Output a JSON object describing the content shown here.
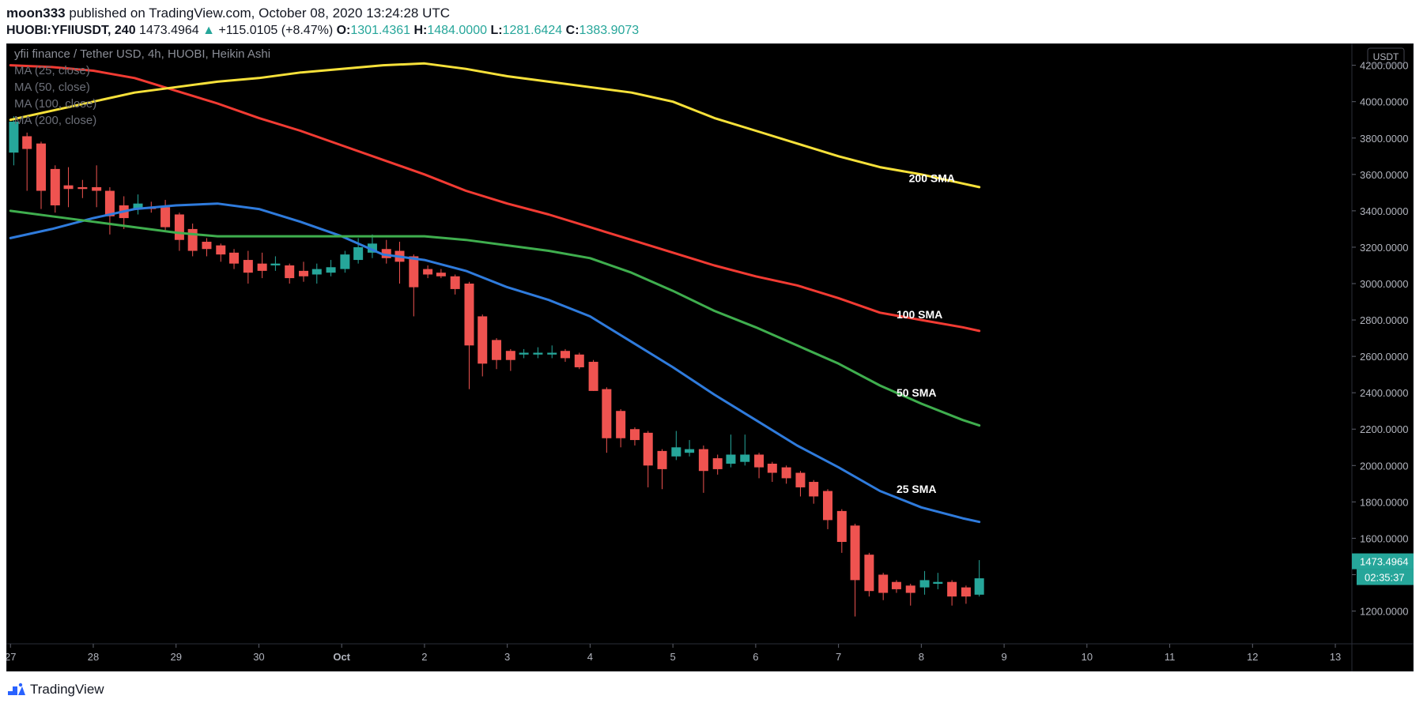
{
  "header": {
    "author": "moon333",
    "published_text": "published on TradingView.com, October 08, 2020 13:24:28 UTC",
    "symbol": "HUOBI:YFIIUSDT, 240",
    "last": "1473.4964",
    "change": "+115.0105 (+8.47%)",
    "o_label": "O:",
    "o": "1301.4361",
    "h_label": "H:",
    "h": "1484.0000",
    "l_label": "L:",
    "l": "1281.6424",
    "c_label": "C:",
    "c": "1383.9073"
  },
  "footer": {
    "brand": "TradingView"
  },
  "chart_data": {
    "type": "candlestick",
    "title": "yfii finance / Tether USD, 4h, HUOBI, Heikin Ashi",
    "currency_label": "USDT",
    "indicators_legend": [
      "MA (25, close)",
      "MA (50, close)",
      "MA (100, close)",
      "MA (200, close)"
    ],
    "y_ticks": [
      1200,
      1400,
      1600,
      1800,
      2000,
      2200,
      2400,
      2600,
      2800,
      3000,
      3200,
      3400,
      3600,
      3800,
      4000,
      4200
    ],
    "y_tick_labels": [
      "1200.0000",
      "1400.0000",
      "1600.0000",
      "1800.0000",
      "2000.0000",
      "2200.0000",
      "2400.0000",
      "2600.0000",
      "2800.0000",
      "3000.0000",
      "3200.0000",
      "3400.0000",
      "3600.0000",
      "3800.0000",
      "4000.0000",
      "4200.0000"
    ],
    "ylim": [
      1020,
      4320
    ],
    "x_range": [
      -0.05,
      16.2
    ],
    "x_ticks": [
      {
        "day": 0,
        "label": "27",
        "bold": false
      },
      {
        "day": 1,
        "label": "28",
        "bold": false
      },
      {
        "day": 2,
        "label": "29",
        "bold": false
      },
      {
        "day": 3,
        "label": "30",
        "bold": false
      },
      {
        "day": 4,
        "label": "Oct",
        "bold": true
      },
      {
        "day": 5,
        "label": "2",
        "bold": false
      },
      {
        "day": 6,
        "label": "3",
        "bold": false
      },
      {
        "day": 7,
        "label": "4",
        "bold": false
      },
      {
        "day": 8,
        "label": "5",
        "bold": false
      },
      {
        "day": 9,
        "label": "6",
        "bold": false
      },
      {
        "day": 10,
        "label": "7",
        "bold": false
      },
      {
        "day": 11,
        "label": "8",
        "bold": false
      },
      {
        "day": 12,
        "label": "9",
        "bold": false
      },
      {
        "day": 13,
        "label": "10",
        "bold": false
      },
      {
        "day": 14,
        "label": "11",
        "bold": false
      },
      {
        "day": 15,
        "label": "12",
        "bold": false
      },
      {
        "day": 16,
        "label": "13",
        "bold": false
      }
    ],
    "candles": [
      {
        "t": 0.04,
        "o": 3720,
        "h": 3920,
        "l": 3650,
        "c": 3890
      },
      {
        "t": 0.2,
        "o": 3810,
        "h": 3830,
        "l": 3510,
        "c": 3740
      },
      {
        "t": 0.37,
        "o": 3770,
        "h": 3780,
        "l": 3410,
        "c": 3510
      },
      {
        "t": 0.54,
        "o": 3630,
        "h": 3650,
        "l": 3390,
        "c": 3430
      },
      {
        "t": 0.7,
        "o": 3540,
        "h": 3640,
        "l": 3420,
        "c": 3520
      },
      {
        "t": 0.87,
        "o": 3530,
        "h": 3570,
        "l": 3470,
        "c": 3520
      },
      {
        "t": 1.04,
        "o": 3530,
        "h": 3650,
        "l": 3420,
        "c": 3510
      },
      {
        "t": 1.2,
        "o": 3510,
        "h": 3530,
        "l": 3270,
        "c": 3370
      },
      {
        "t": 1.37,
        "o": 3430,
        "h": 3480,
        "l": 3300,
        "c": 3360
      },
      {
        "t": 1.54,
        "o": 3410,
        "h": 3490,
        "l": 3380,
        "c": 3440
      },
      {
        "t": 1.7,
        "o": 3420,
        "h": 3450,
        "l": 3390,
        "c": 3410
      },
      {
        "t": 1.87,
        "o": 3420,
        "h": 3460,
        "l": 3290,
        "c": 3310
      },
      {
        "t": 2.04,
        "o": 3380,
        "h": 3390,
        "l": 3180,
        "c": 3240
      },
      {
        "t": 2.2,
        "o": 3300,
        "h": 3330,
        "l": 3150,
        "c": 3180
      },
      {
        "t": 2.37,
        "o": 3230,
        "h": 3250,
        "l": 3150,
        "c": 3190
      },
      {
        "t": 2.54,
        "o": 3210,
        "h": 3220,
        "l": 3120,
        "c": 3160
      },
      {
        "t": 2.7,
        "o": 3170,
        "h": 3190,
        "l": 3080,
        "c": 3110
      },
      {
        "t": 2.87,
        "o": 3130,
        "h": 3180,
        "l": 3000,
        "c": 3060
      },
      {
        "t": 3.04,
        "o": 3110,
        "h": 3170,
        "l": 3030,
        "c": 3070
      },
      {
        "t": 3.2,
        "o": 3100,
        "h": 3150,
        "l": 3070,
        "c": 3110
      },
      {
        "t": 3.37,
        "o": 3100,
        "h": 3110,
        "l": 3000,
        "c": 3030
      },
      {
        "t": 3.54,
        "o": 3070,
        "h": 3120,
        "l": 3010,
        "c": 3040
      },
      {
        "t": 3.7,
        "o": 3050,
        "h": 3110,
        "l": 3000,
        "c": 3080
      },
      {
        "t": 3.87,
        "o": 3060,
        "h": 3130,
        "l": 3040,
        "c": 3090
      },
      {
        "t": 4.04,
        "o": 3080,
        "h": 3180,
        "l": 3060,
        "c": 3160
      },
      {
        "t": 4.2,
        "o": 3130,
        "h": 3250,
        "l": 3110,
        "c": 3200
      },
      {
        "t": 4.37,
        "o": 3170,
        "h": 3270,
        "l": 3140,
        "c": 3220
      },
      {
        "t": 4.54,
        "o": 3190,
        "h": 3240,
        "l": 3110,
        "c": 3140
      },
      {
        "t": 4.7,
        "o": 3180,
        "h": 3230,
        "l": 3000,
        "c": 3120
      },
      {
        "t": 4.87,
        "o": 3150,
        "h": 3160,
        "l": 2820,
        "c": 2980
      },
      {
        "t": 5.04,
        "o": 3080,
        "h": 3100,
        "l": 3030,
        "c": 3050
      },
      {
        "t": 5.2,
        "o": 3060,
        "h": 3080,
        "l": 3030,
        "c": 3040
      },
      {
        "t": 5.37,
        "o": 3040,
        "h": 3050,
        "l": 2940,
        "c": 2970
      },
      {
        "t": 5.54,
        "o": 3000,
        "h": 3010,
        "l": 2420,
        "c": 2660
      },
      {
        "t": 5.7,
        "o": 2820,
        "h": 2830,
        "l": 2490,
        "c": 2560
      },
      {
        "t": 5.87,
        "o": 2690,
        "h": 2700,
        "l": 2530,
        "c": 2580
      },
      {
        "t": 6.04,
        "o": 2630,
        "h": 2640,
        "l": 2520,
        "c": 2580
      },
      {
        "t": 6.2,
        "o": 2610,
        "h": 2640,
        "l": 2590,
        "c": 2620
      },
      {
        "t": 6.37,
        "o": 2610,
        "h": 2650,
        "l": 2590,
        "c": 2620
      },
      {
        "t": 6.54,
        "o": 2610,
        "h": 2660,
        "l": 2590,
        "c": 2620
      },
      {
        "t": 6.7,
        "o": 2630,
        "h": 2640,
        "l": 2570,
        "c": 2590
      },
      {
        "t": 6.87,
        "o": 2610,
        "h": 2620,
        "l": 2530,
        "c": 2540
      },
      {
        "t": 7.04,
        "o": 2570,
        "h": 2580,
        "l": 2410,
        "c": 2410
      },
      {
        "t": 7.2,
        "o": 2420,
        "h": 2430,
        "l": 2070,
        "c": 2150
      },
      {
        "t": 7.37,
        "o": 2300,
        "h": 2310,
        "l": 2100,
        "c": 2150
      },
      {
        "t": 7.54,
        "o": 2200,
        "h": 2210,
        "l": 2110,
        "c": 2140
      },
      {
        "t": 7.7,
        "o": 2180,
        "h": 2190,
        "l": 1880,
        "c": 2000
      },
      {
        "t": 7.87,
        "o": 2080,
        "h": 2090,
        "l": 1870,
        "c": 1980
      },
      {
        "t": 8.04,
        "o": 2050,
        "h": 2190,
        "l": 2030,
        "c": 2100
      },
      {
        "t": 8.2,
        "o": 2070,
        "h": 2140,
        "l": 2050,
        "c": 2090
      },
      {
        "t": 8.37,
        "o": 2090,
        "h": 2110,
        "l": 1850,
        "c": 1970
      },
      {
        "t": 8.54,
        "o": 2040,
        "h": 2060,
        "l": 1950,
        "c": 1980
      },
      {
        "t": 8.7,
        "o": 2010,
        "h": 2170,
        "l": 1990,
        "c": 2060
      },
      {
        "t": 8.87,
        "o": 2020,
        "h": 2170,
        "l": 2000,
        "c": 2060
      },
      {
        "t": 9.04,
        "o": 2060,
        "h": 2070,
        "l": 1930,
        "c": 1990
      },
      {
        "t": 9.2,
        "o": 2010,
        "h": 2020,
        "l": 1910,
        "c": 1960
      },
      {
        "t": 9.37,
        "o": 1990,
        "h": 2000,
        "l": 1900,
        "c": 1930
      },
      {
        "t": 9.54,
        "o": 1960,
        "h": 1970,
        "l": 1830,
        "c": 1880
      },
      {
        "t": 9.7,
        "o": 1910,
        "h": 1920,
        "l": 1790,
        "c": 1830
      },
      {
        "t": 9.87,
        "o": 1860,
        "h": 1870,
        "l": 1650,
        "c": 1700
      },
      {
        "t": 10.04,
        "o": 1750,
        "h": 1760,
        "l": 1520,
        "c": 1580
      },
      {
        "t": 10.2,
        "o": 1670,
        "h": 1680,
        "l": 1170,
        "c": 1370
      },
      {
        "t": 10.37,
        "o": 1510,
        "h": 1520,
        "l": 1280,
        "c": 1310
      },
      {
        "t": 10.54,
        "o": 1400,
        "h": 1410,
        "l": 1260,
        "c": 1300
      },
      {
        "t": 10.7,
        "o": 1360,
        "h": 1370,
        "l": 1300,
        "c": 1320
      },
      {
        "t": 10.87,
        "o": 1340,
        "h": 1350,
        "l": 1230,
        "c": 1300
      },
      {
        "t": 11.04,
        "o": 1330,
        "h": 1420,
        "l": 1290,
        "c": 1370
      },
      {
        "t": 11.2,
        "o": 1350,
        "h": 1410,
        "l": 1320,
        "c": 1360
      },
      {
        "t": 11.37,
        "o": 1360,
        "h": 1370,
        "l": 1230,
        "c": 1280
      },
      {
        "t": 11.54,
        "o": 1330,
        "h": 1340,
        "l": 1240,
        "c": 1280
      },
      {
        "t": 11.7,
        "o": 1290,
        "h": 1480,
        "l": 1280,
        "c": 1380
      }
    ],
    "moving_averages": [
      {
        "name": "25 SMA",
        "color": "#2f7bdc",
        "label_day": 10.7,
        "label_value": 1870,
        "points": [
          [
            0.0,
            3250
          ],
          [
            0.5,
            3300
          ],
          [
            1.0,
            3360
          ],
          [
            1.5,
            3410
          ],
          [
            2.0,
            3430
          ],
          [
            2.5,
            3440
          ],
          [
            3.0,
            3410
          ],
          [
            3.5,
            3340
          ],
          [
            4.0,
            3260
          ],
          [
            4.5,
            3160
          ],
          [
            5.0,
            3130
          ],
          [
            5.5,
            3070
          ],
          [
            6.0,
            2980
          ],
          [
            6.5,
            2910
          ],
          [
            7.0,
            2820
          ],
          [
            7.5,
            2680
          ],
          [
            8.0,
            2540
          ],
          [
            8.5,
            2390
          ],
          [
            9.0,
            2250
          ],
          [
            9.5,
            2110
          ],
          [
            10.0,
            1990
          ],
          [
            10.5,
            1860
          ],
          [
            11.0,
            1770
          ],
          [
            11.5,
            1710
          ],
          [
            11.7,
            1690
          ]
        ]
      },
      {
        "name": "50 SMA",
        "color": "#3fae4e",
        "label_day": 10.7,
        "label_value": 2400,
        "points": [
          [
            0.0,
            3400
          ],
          [
            0.5,
            3370
          ],
          [
            1.0,
            3340
          ],
          [
            1.5,
            3310
          ],
          [
            2.0,
            3280
          ],
          [
            2.5,
            3260
          ],
          [
            3.0,
            3260
          ],
          [
            3.5,
            3260
          ],
          [
            4.0,
            3260
          ],
          [
            4.5,
            3260
          ],
          [
            5.0,
            3260
          ],
          [
            5.5,
            3240
          ],
          [
            6.0,
            3210
          ],
          [
            6.5,
            3180
          ],
          [
            7.0,
            3140
          ],
          [
            7.5,
            3060
          ],
          [
            8.0,
            2960
          ],
          [
            8.5,
            2850
          ],
          [
            9.0,
            2760
          ],
          [
            9.5,
            2660
          ],
          [
            10.0,
            2560
          ],
          [
            10.5,
            2440
          ],
          [
            11.0,
            2340
          ],
          [
            11.5,
            2250
          ],
          [
            11.7,
            2220
          ]
        ]
      },
      {
        "name": "100 SMA",
        "color": "#f23b33",
        "label_day": 10.7,
        "label_value": 2830,
        "points": [
          [
            0.0,
            4200
          ],
          [
            0.5,
            4190
          ],
          [
            1.0,
            4170
          ],
          [
            1.5,
            4130
          ],
          [
            2.0,
            4060
          ],
          [
            2.5,
            3990
          ],
          [
            3.0,
            3910
          ],
          [
            3.5,
            3840
          ],
          [
            4.0,
            3760
          ],
          [
            4.5,
            3680
          ],
          [
            5.0,
            3600
          ],
          [
            5.5,
            3510
          ],
          [
            6.0,
            3440
          ],
          [
            6.5,
            3380
          ],
          [
            7.0,
            3310
          ],
          [
            7.5,
            3240
          ],
          [
            8.0,
            3170
          ],
          [
            8.5,
            3100
          ],
          [
            9.0,
            3040
          ],
          [
            9.5,
            2990
          ],
          [
            10.0,
            2920
          ],
          [
            10.5,
            2840
          ],
          [
            11.0,
            2800
          ],
          [
            11.5,
            2760
          ],
          [
            11.7,
            2740
          ]
        ]
      },
      {
        "name": "200 SMA",
        "color": "#f7e13a",
        "label_day": 10.85,
        "label_value": 3580,
        "points": [
          [
            0.0,
            3900
          ],
          [
            0.5,
            3950
          ],
          [
            1.0,
            4000
          ],
          [
            1.5,
            4050
          ],
          [
            2.0,
            4080
          ],
          [
            2.5,
            4110
          ],
          [
            3.0,
            4130
          ],
          [
            3.5,
            4160
          ],
          [
            4.0,
            4180
          ],
          [
            4.5,
            4200
          ],
          [
            5.0,
            4210
          ],
          [
            5.5,
            4180
          ],
          [
            6.0,
            4140
          ],
          [
            6.5,
            4110
          ],
          [
            7.0,
            4080
          ],
          [
            7.5,
            4050
          ],
          [
            8.0,
            4000
          ],
          [
            8.5,
            3910
          ],
          [
            9.0,
            3840
          ],
          [
            9.5,
            3770
          ],
          [
            10.0,
            3700
          ],
          [
            10.5,
            3640
          ],
          [
            11.0,
            3600
          ],
          [
            11.5,
            3550
          ],
          [
            11.7,
            3530
          ]
        ]
      }
    ],
    "last_price_label": "1473.4964",
    "last_price_value": 1473.4964,
    "countdown_label": "02:35:37",
    "colors": {
      "background": "#000000",
      "up": "#26a69a",
      "down": "#ef5350",
      "axis_text": "#b2b5be",
      "title_text": "#8a8d96",
      "legend_text": "#6b6e77"
    }
  }
}
